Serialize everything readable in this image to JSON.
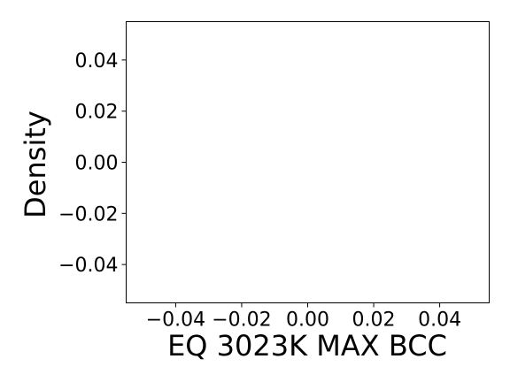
{
  "chart_data": {
    "type": "line",
    "title": "",
    "xlabel": "EQ 3023K MAX BCC",
    "ylabel": "Density",
    "xlim": [
      -0.055,
      0.055
    ],
    "ylim": [
      -0.055,
      0.055
    ],
    "x_ticks": [
      -0.04,
      -0.02,
      0.0,
      0.02,
      0.04
    ],
    "x_tick_labels": [
      "−0.04",
      "−0.02",
      "0.00",
      "0.02",
      "0.04"
    ],
    "y_ticks": [
      -0.04,
      -0.02,
      0.0,
      0.02,
      0.04
    ],
    "y_tick_labels": [
      "−0.04",
      "−0.02",
      "0.00",
      "0.02",
      "0.04"
    ],
    "series": [],
    "grid": false,
    "legend": false
  }
}
